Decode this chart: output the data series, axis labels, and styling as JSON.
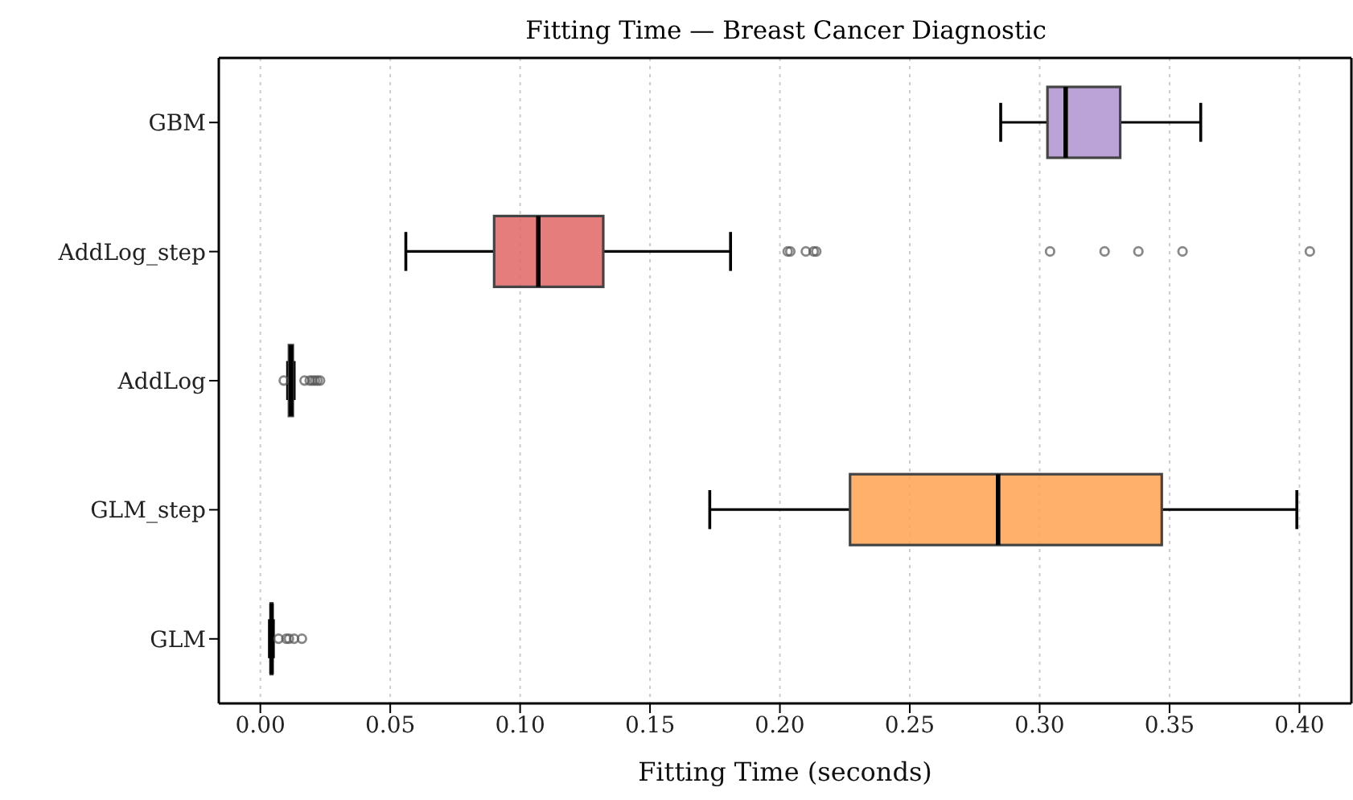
{
  "chart_data": {
    "type": "box",
    "title": "Fitting Time — Breast Cancer Diagnostic",
    "xlabel": "Fitting Time (seconds)",
    "orientation": "horizontal",
    "categories": [
      "GBM",
      "AddLog_step",
      "AddLog",
      "GLM_step",
      "GLM"
    ],
    "colors": [
      "#b093d0",
      "#e06666",
      "#5b8fd0",
      "#ffa352",
      "#6cbf6c"
    ],
    "boxes": [
      {
        "low": 0.285,
        "q1": 0.303,
        "median": 0.31,
        "q3": 0.331,
        "high": 0.362
      },
      {
        "low": 0.056,
        "q1": 0.09,
        "median": 0.107,
        "q3": 0.132,
        "high": 0.181,
        "outliers": [
          0.203,
          0.204,
          0.21,
          0.213,
          0.214,
          0.304,
          0.325,
          0.338,
          0.355,
          0.404
        ]
      },
      {
        "low": 0.0105,
        "q1": 0.011,
        "median": 0.0118,
        "q3": 0.0125,
        "high": 0.013,
        "outliers": [
          0.009,
          0.017,
          0.019,
          0.02,
          0.021,
          0.022,
          0.023
        ]
      },
      {
        "low": 0.173,
        "q1": 0.227,
        "median": 0.284,
        "q3": 0.347,
        "high": 0.399
      },
      {
        "low": 0.0035,
        "q1": 0.004,
        "median": 0.0043,
        "q3": 0.0046,
        "high": 0.005,
        "outliers": [
          0.007,
          0.01,
          0.011,
          0.013,
          0.016
        ]
      }
    ],
    "xlim": [
      -0.016,
      0.42
    ],
    "xticks": [
      {
        "value": 0,
        "label": "0.00"
      },
      0.05,
      {
        "value": 0.1,
        "label": "0.10"
      },
      0.15,
      {
        "value": 0.2,
        "label": "0.20"
      },
      0.25,
      {
        "value": 0.3,
        "label": "0.30"
      },
      0.35,
      {
        "value": 0.4,
        "label": "0.40"
      }
    ],
    "grid": "x"
  }
}
